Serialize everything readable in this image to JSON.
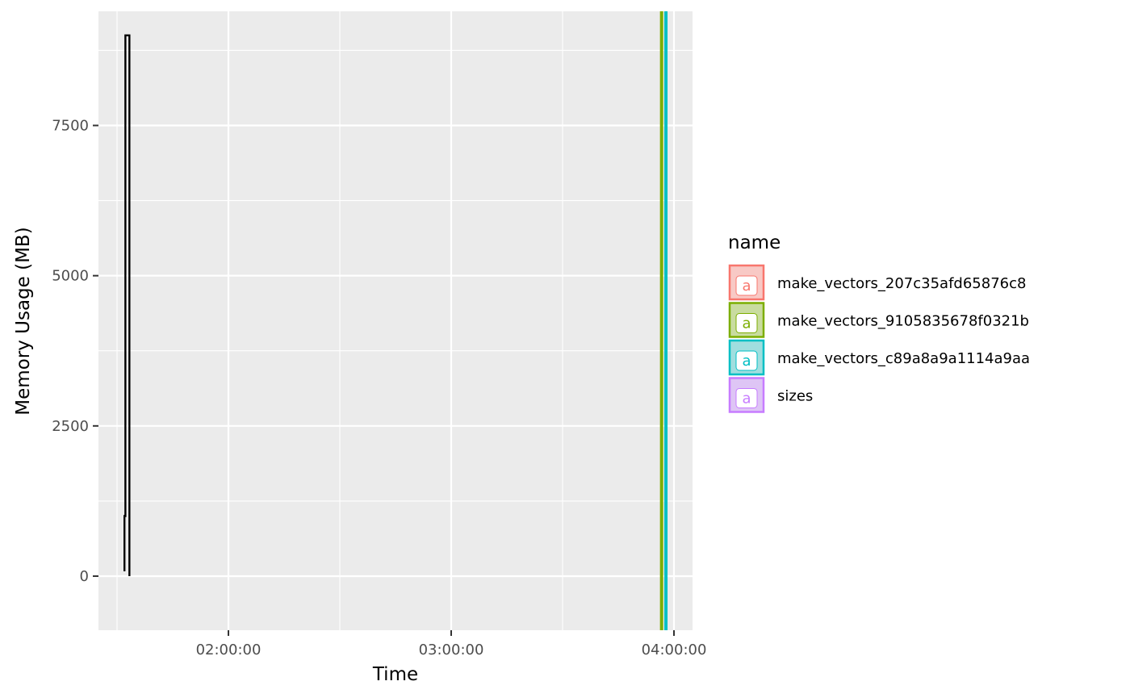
{
  "chart_data": {
    "type": "line",
    "xlabel": "Time",
    "ylabel": "Memory Usage (MB)",
    "xlim": [
      "01:25:00",
      "04:05:00"
    ],
    "ylim": [
      -900,
      9400
    ],
    "x_ticks": [
      "02:00:00",
      "03:00:00",
      "04:00:00"
    ],
    "y_ticks": [
      0,
      2500,
      5000,
      7500
    ],
    "grid": true,
    "background": "#EBEBEB",
    "memory_trace": {
      "color": "#000000",
      "points": [
        {
          "x": "01:32:00",
          "y": 80
        },
        {
          "x": "01:32:00",
          "y": 1000
        },
        {
          "x": "01:32:15",
          "y": 1000
        },
        {
          "x": "01:32:15",
          "y": 9000
        },
        {
          "x": "01:33:20",
          "y": 9000
        },
        {
          "x": "01:33:20",
          "y": 0
        }
      ]
    },
    "vlines": [
      {
        "name": "make_vectors_9105835678f0321b",
        "x": "03:56:40",
        "color": "#7CAE00"
      },
      {
        "name": "make_vectors_c89a8a9a1114a9aa",
        "x": "03:57:50",
        "color": "#00BFC4"
      }
    ],
    "legend": {
      "title": "name",
      "placement": "right",
      "key_glyph": "a",
      "items": [
        {
          "label": "make_vectors_207c35afd65876c8",
          "color": "#F8766D",
          "fill": "#F8C9C5"
        },
        {
          "label": "make_vectors_9105835678f0321b",
          "color": "#7CAE00",
          "fill": "#C9DCA0"
        },
        {
          "label": "make_vectors_c89a8a9a1114a9aa",
          "color": "#00BFC4",
          "fill": "#A0DEDF"
        },
        {
          "label": "sizes",
          "color": "#C77CFF",
          "fill": "#DEC5F5"
        }
      ]
    }
  }
}
